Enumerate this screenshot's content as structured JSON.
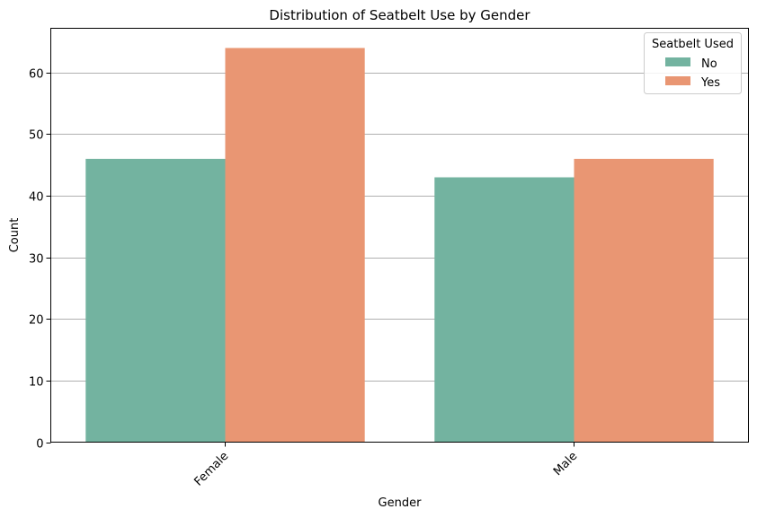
{
  "chart_data": {
    "type": "bar",
    "title": "Distribution of Seatbelt Use by Gender",
    "xlabel": "Gender",
    "ylabel": "Count",
    "categories": [
      "Female",
      "Male"
    ],
    "series": [
      {
        "name": "No",
        "values": [
          46,
          43
        ],
        "color": "#73b3a0"
      },
      {
        "name": "Yes",
        "values": [
          64,
          46
        ],
        "color": "#e99673"
      }
    ],
    "ylim": [
      0,
      67.2
    ],
    "yticks": [
      0,
      10,
      20,
      30,
      40,
      50,
      60
    ],
    "grid": "y",
    "legend": {
      "title": "Seatbelt Used",
      "placement": "top-right"
    }
  }
}
